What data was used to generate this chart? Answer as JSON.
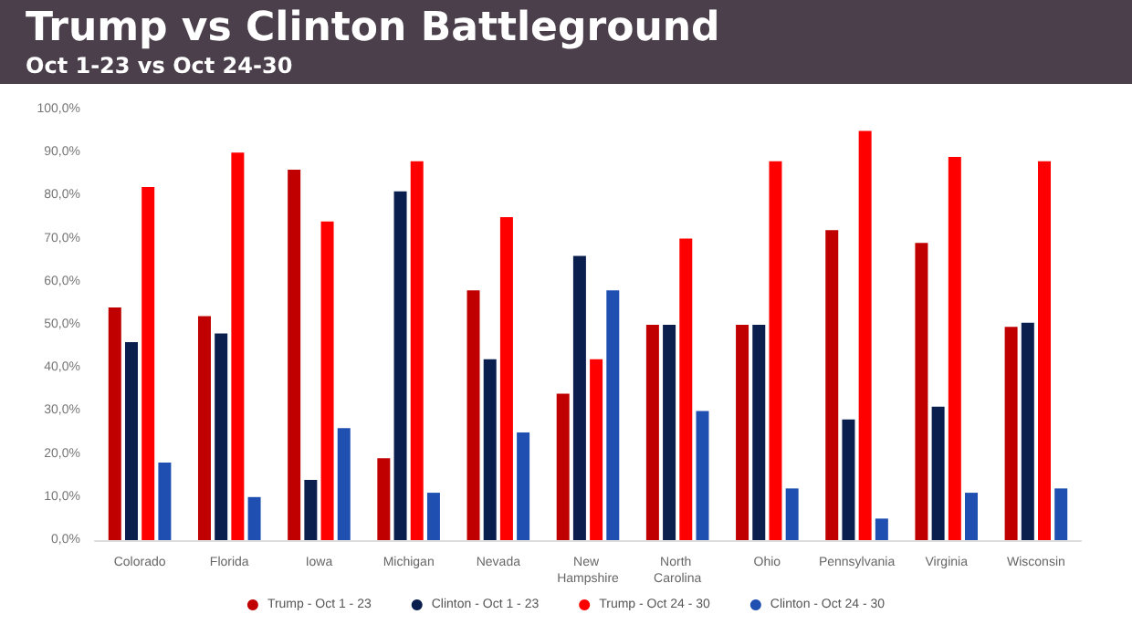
{
  "chart_data": {
    "type": "bar",
    "title": "Trump vs Clinton Battleground",
    "subtitle": "Oct 1-23 vs Oct 24-30",
    "categories": [
      "Colorado",
      "Florida",
      "Iowa",
      "Michigan",
      "Nevada",
      "New Hampshire",
      "North Carolina",
      "Ohio",
      "Pennsylvania",
      "Virginia",
      "Wisconsin"
    ],
    "series": [
      {
        "name": "Trump - Oct 1 - 23",
        "color": "#c00000",
        "values": [
          54,
          52,
          86,
          19,
          58,
          34,
          50,
          50,
          72,
          69,
          49.5
        ]
      },
      {
        "name": "Clinton - Oct 1 - 23",
        "color": "#0b1f4f",
        "values": [
          46,
          48,
          14,
          81,
          42,
          66,
          50,
          50,
          28,
          31,
          50.5
        ]
      },
      {
        "name": "Trump - Oct 24 - 30",
        "color": "#ff0000",
        "values": [
          82,
          90,
          74,
          88,
          75,
          42,
          70,
          88,
          95,
          89,
          88
        ]
      },
      {
        "name": "Clinton - Oct 24 - 30",
        "color": "#1f4fb0",
        "values": [
          18,
          10,
          26,
          11,
          25,
          58,
          30,
          12,
          5,
          11,
          12
        ]
      }
    ],
    "ylim": [
      0,
      100
    ],
    "yticks": [
      {
        "value": 0,
        "label": "0,0%"
      },
      {
        "value": 10,
        "label": "10,0%"
      },
      {
        "value": 20,
        "label": "20,0%"
      },
      {
        "value": 30,
        "label": "30,0%"
      },
      {
        "value": 40,
        "label": "40,0%"
      },
      {
        "value": 50,
        "label": "50,0%"
      },
      {
        "value": 60,
        "label": "60,0%"
      },
      {
        "value": 70,
        "label": "70,0%"
      },
      {
        "value": 80,
        "label": "80,0%"
      },
      {
        "value": 90,
        "label": "90,0%"
      },
      {
        "value": 100,
        "label": "100,0%"
      }
    ],
    "grid": false,
    "legend": "bottom"
  }
}
